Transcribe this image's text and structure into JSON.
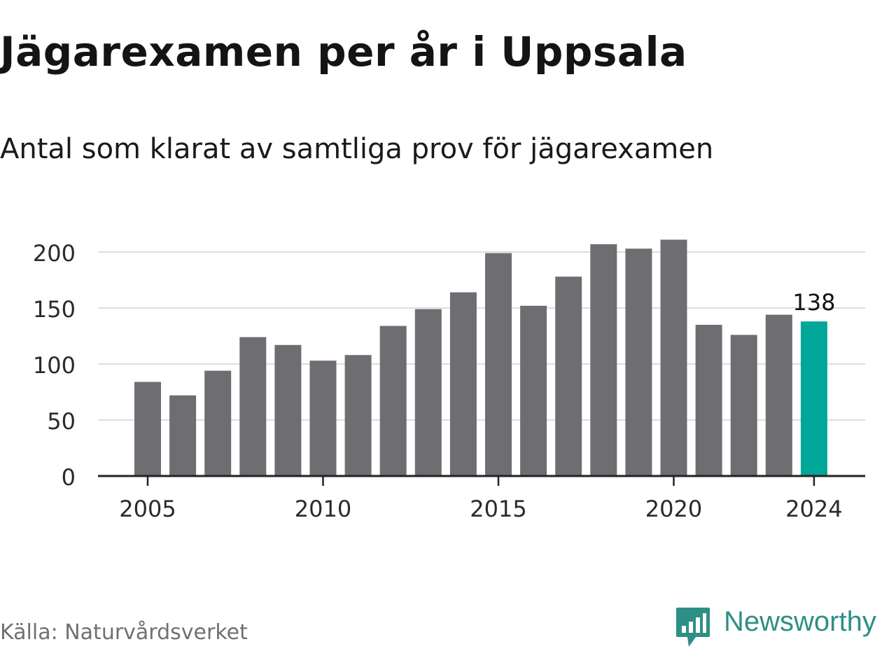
{
  "title": "Jägarexamen per år i Uppsala",
  "subtitle": "Antal som klarat av samtliga prov för jägarexamen",
  "source": "Källa: Naturvårdsverket",
  "brand": {
    "name": "Newsworthy",
    "color": "#2e8f86",
    "icon": "newsworthy-logo-icon"
  },
  "colors": {
    "bar": "#6e6d72",
    "highlight": "#00a698",
    "grid": "#dddddd",
    "axis": "#222222"
  },
  "chart_data": {
    "type": "bar",
    "title": "Jägarexamen per år i Uppsala",
    "subtitle": "Antal som klarat av samtliga prov för jägarexamen",
    "xlabel": "",
    "ylabel": "",
    "x": [
      2005,
      2006,
      2007,
      2008,
      2009,
      2010,
      2011,
      2012,
      2013,
      2014,
      2015,
      2016,
      2017,
      2018,
      2019,
      2020,
      2021,
      2022,
      2023,
      2024
    ],
    "values": [
      84,
      72,
      94,
      124,
      117,
      103,
      108,
      134,
      149,
      164,
      199,
      152,
      178,
      207,
      203,
      211,
      135,
      126,
      144,
      138
    ],
    "highlight_index": 19,
    "highlight_label": "138",
    "ylim": [
      0,
      220
    ],
    "yticks": [
      0,
      50,
      100,
      150,
      200
    ],
    "xticks": [
      2005,
      2010,
      2015,
      2020,
      2024
    ],
    "grid": true,
    "legend": "none"
  }
}
